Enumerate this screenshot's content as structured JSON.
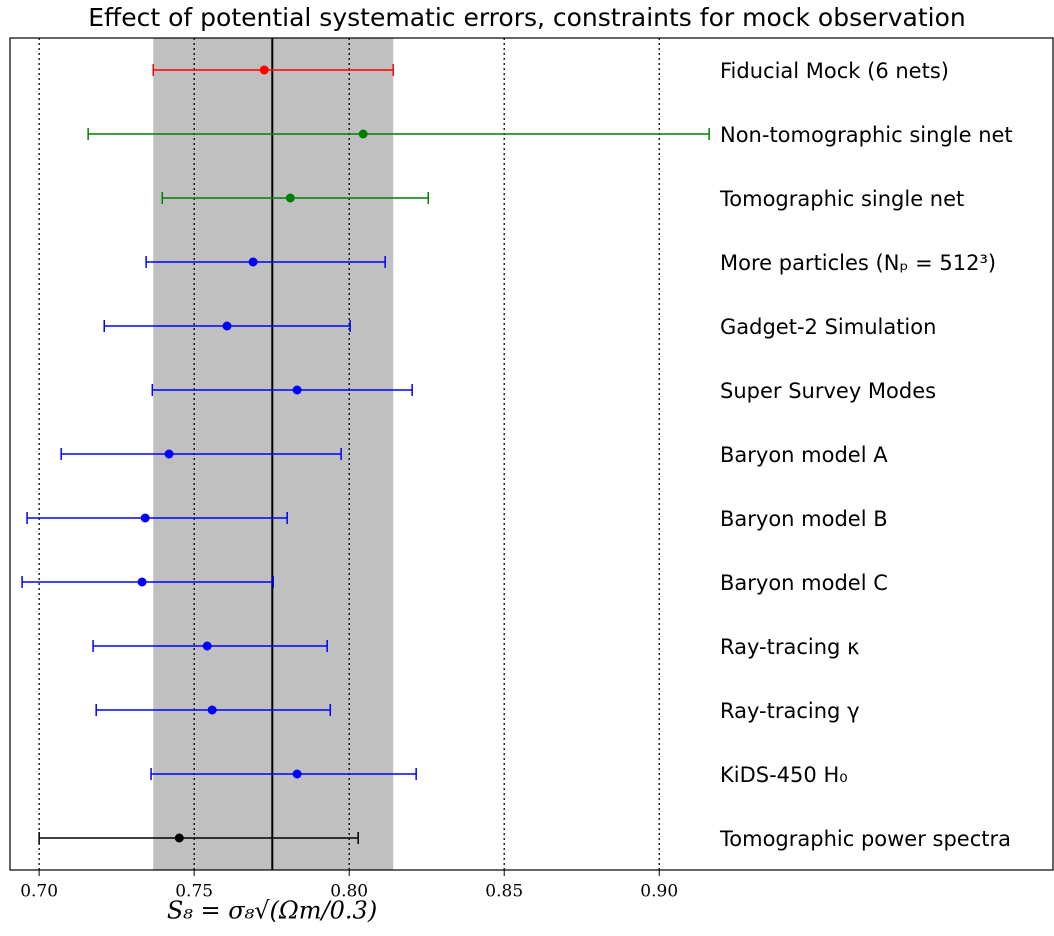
{
  "chart_data": {
    "type": "errorbar",
    "title": "Effect of potential systematic errors, constraints for mock observation",
    "x_label": "S₈ = σ₈√(Ωm/0.3)",
    "categories": [
      "Fiducial Mock (6 nets)",
      "Non-tomographic single net",
      "Tomographic single net",
      "More particles (Nₚ = 512³)",
      "Gadget-2 Simulation",
      "Super Survey Modes",
      "Baryon model A",
      "Baryon model B",
      "Baryon model C",
      "Ray-tracing κ",
      "Ray-tracing γ",
      "KiDS-450 H₀",
      "Tomographic power spectra"
    ],
    "values": [
      0.7726,
      0.8045,
      0.781,
      0.769,
      0.7606,
      0.7832,
      0.7419,
      0.7342,
      0.7332,
      0.7542,
      0.7558,
      0.7832,
      0.7452
    ],
    "lower": [
      0.7368,
      0.7158,
      0.7397,
      0.7345,
      0.721,
      0.7365,
      0.7071,
      0.6961,
      0.6945,
      0.7174,
      0.7184,
      0.7361,
      0.7
    ],
    "upper": [
      0.8142,
      0.9161,
      0.8255,
      0.8116,
      0.8003,
      0.8203,
      0.7974,
      0.78,
      0.7755,
      0.7929,
      0.7939,
      0.8216,
      0.8029
    ],
    "colors": [
      "#ff0000",
      "#008000",
      "#008000",
      "#0000ff",
      "#0000ff",
      "#0000ff",
      "#0000ff",
      "#0000ff",
      "#0000ff",
      "#0000ff",
      "#0000ff",
      "#0000ff",
      "#000000"
    ],
    "band": [
      0.7368,
      0.8142
    ],
    "band_color": "#c0c0c0",
    "reference_line": 0.7752,
    "xlim": [
      0.6906,
      1.027
    ],
    "xticks": [
      {
        "value": 0.7,
        "label": "0.70"
      },
      {
        "value": 0.75,
        "label": "0.75"
      },
      {
        "value": 0.8,
        "label": "0.80"
      },
      {
        "value": 0.85,
        "label": "0.85"
      },
      {
        "value": 0.9,
        "label": "0.90"
      }
    ],
    "grid": true
  }
}
